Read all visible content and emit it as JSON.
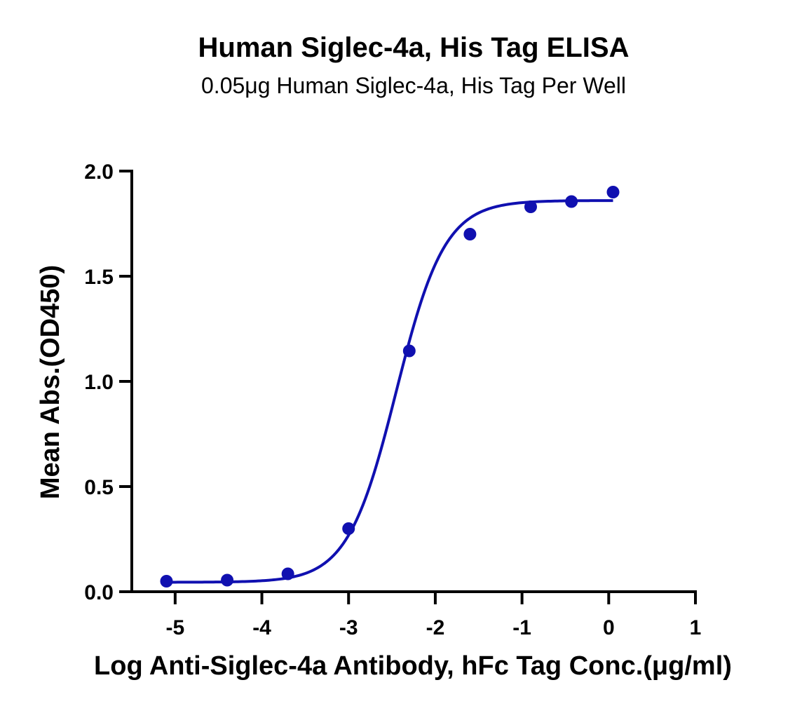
{
  "chart_data": {
    "type": "scatter",
    "title": "Human Siglec-4a, His Tag ELISA",
    "subtitle": "0.05μg Human Siglec-4a, His Tag Per Well",
    "xlabel": "Log Anti-Siglec-4a Antibody, hFc Tag Conc.(μg/ml)",
    "ylabel": "Mean Abs.(OD450)",
    "xlim": [
      -5.5,
      1
    ],
    "ylim": [
      0,
      2.0
    ],
    "xticks": [
      -5,
      -4,
      -3,
      -2,
      -1,
      0,
      1
    ],
    "xtick_labels": [
      "-5",
      "-4",
      "-3",
      "-2",
      "-1",
      "0",
      "1"
    ],
    "yticks": [
      0,
      0.5,
      1.0,
      1.5,
      2.0
    ],
    "ytick_labels": [
      "0.0",
      "0.5",
      "1.0",
      "1.5",
      "2.0"
    ],
    "series": [
      {
        "x": [
          -5.1,
          -4.4,
          -3.7,
          -3.0,
          -2.3,
          -1.6,
          -0.9,
          -0.43,
          0.05
        ],
        "y": [
          0.05,
          0.055,
          0.085,
          0.3,
          1.145,
          1.7,
          1.83,
          1.855,
          1.9
        ],
        "fit": {
          "model": "4PL",
          "bottom": 0.045,
          "top": 1.86,
          "log_ec50": -2.45,
          "hill_slope": 1.55,
          "x_range": [
            -5.1,
            0.05
          ]
        }
      }
    ],
    "color": "#1010b0",
    "grid": false
  }
}
